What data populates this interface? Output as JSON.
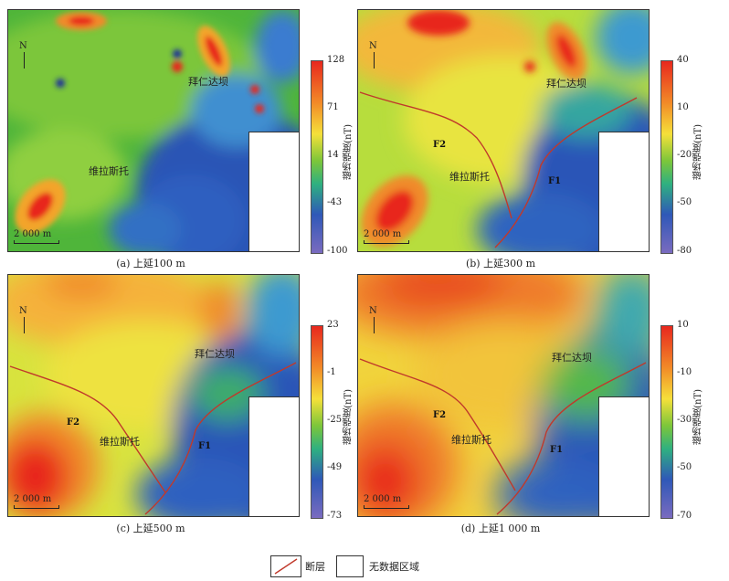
{
  "panels": [
    {
      "caption": "(a) 上延100 m",
      "north": "N",
      "scale": "2 000 m",
      "places": [
        "拜仁达坝",
        "维拉斯托"
      ],
      "faults": [],
      "colorbar": {
        "title": "磁场强度(nT)",
        "ticks": [
          "128",
          "71",
          "14",
          "-43",
          "-100"
        ]
      }
    },
    {
      "caption": "(b) 上延300 m",
      "north": "N",
      "scale": "2 000 m",
      "places": [
        "拜仁达坝",
        "维拉斯托"
      ],
      "faults": [
        "F2",
        "F1"
      ],
      "colorbar": {
        "title": "磁场强度(nT)",
        "ticks": [
          "40",
          "10",
          "-20",
          "-50",
          "-80"
        ]
      }
    },
    {
      "caption": "(c) 上延500 m",
      "north": "N",
      "scale": "2 000 m",
      "places": [
        "拜仁达坝",
        "维拉斯托"
      ],
      "faults": [
        "F2",
        "F1"
      ],
      "colorbar": {
        "title": "磁场强度(nT)",
        "ticks": [
          "23",
          "-1",
          "-25",
          "-49",
          "-73"
        ]
      }
    },
    {
      "caption": "(d) 上延1 000 m",
      "north": "N",
      "scale": "2 000 m",
      "places": [
        "拜仁达坝",
        "维拉斯托"
      ],
      "faults": [
        "F2",
        "F1"
      ],
      "colorbar": {
        "title": "磁场强度(nT)",
        "ticks": [
          "10",
          "-10",
          "-30",
          "-50",
          "-70"
        ]
      }
    }
  ],
  "legend": {
    "fault": "断层",
    "nodata": "无数据区域"
  },
  "colors": {
    "fault": "#c0392b",
    "high": "#e8281e",
    "mid": "#f5e03a",
    "low": "#2f58b8"
  }
}
